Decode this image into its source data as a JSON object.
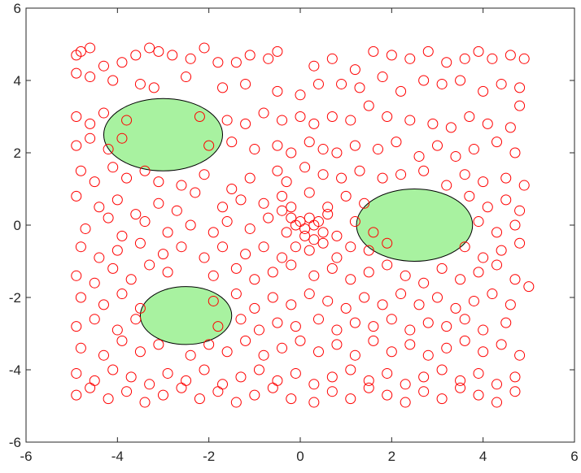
{
  "chart_data": {
    "type": "scatter",
    "title": "",
    "xlabel": "",
    "ylabel": "",
    "xlim": [
      -6,
      6
    ],
    "ylim": [
      -6,
      6
    ],
    "xticks": [
      -6,
      -4,
      -2,
      0,
      2,
      4,
      6
    ],
    "yticks": [
      -6,
      -4,
      -2,
      0,
      2,
      4,
      6
    ],
    "grid": false,
    "colors": {
      "points": "#ff0000",
      "obstacle_fill": "#a8f2a0",
      "obstacle_stroke": "#000000",
      "axes": "#262626"
    },
    "obstacles": [
      {
        "cx": -3.0,
        "cy": 2.5,
        "rx": 1.3,
        "ry": 1.0
      },
      {
        "cx": 2.5,
        "cy": 0.0,
        "rx": 1.27,
        "ry": 1.0
      },
      {
        "cx": -2.5,
        "cy": -2.5,
        "rx": 1.0,
        "ry": 0.8
      }
    ],
    "points": [
      [
        -4.8,
        4.8
      ],
      [
        -4.6,
        4.9
      ],
      [
        -4.9,
        4.7
      ],
      [
        -4.3,
        4.4
      ],
      [
        -3.9,
        4.5
      ],
      [
        -3.6,
        4.7
      ],
      [
        -3.3,
        4.9
      ],
      [
        -3.1,
        4.8
      ],
      [
        -2.8,
        4.7
      ],
      [
        -2.4,
        4.6
      ],
      [
        -2.1,
        4.9
      ],
      [
        -1.8,
        4.5
      ],
      [
        -1.4,
        4.5
      ],
      [
        -1.1,
        4.7
      ],
      [
        -0.7,
        4.6
      ],
      [
        -0.5,
        4.8
      ],
      [
        0.3,
        4.4
      ],
      [
        0.7,
        4.6
      ],
      [
        1.2,
        4.3
      ],
      [
        1.6,
        4.8
      ],
      [
        2.0,
        4.7
      ],
      [
        2.4,
        4.6
      ],
      [
        2.8,
        4.8
      ],
      [
        3.2,
        4.5
      ],
      [
        3.6,
        4.6
      ],
      [
        3.9,
        4.8
      ],
      [
        4.2,
        4.6
      ],
      [
        4.6,
        4.7
      ],
      [
        4.9,
        4.6
      ],
      [
        -4.9,
        4.2
      ],
      [
        -4.6,
        4.1
      ],
      [
        -4.1,
        4.0
      ],
      [
        -3.5,
        3.9
      ],
      [
        -3.2,
        3.8
      ],
      [
        -2.5,
        4.1
      ],
      [
        -1.7,
        3.8
      ],
      [
        -1.2,
        3.9
      ],
      [
        -0.5,
        3.7
      ],
      [
        0.0,
        3.6
      ],
      [
        0.4,
        3.9
      ],
      [
        0.9,
        3.9
      ],
      [
        1.3,
        3.8
      ],
      [
        1.8,
        4.1
      ],
      [
        2.2,
        3.7
      ],
      [
        2.7,
        4.0
      ],
      [
        3.1,
        3.9
      ],
      [
        3.5,
        4.0
      ],
      [
        4.0,
        3.7
      ],
      [
        4.4,
        3.9
      ],
      [
        4.8,
        3.8
      ],
      [
        -4.9,
        3.0
      ],
      [
        -4.6,
        2.8
      ],
      [
        -4.3,
        3.1
      ],
      [
        -3.8,
        2.9
      ],
      [
        -2.2,
        3.0
      ],
      [
        -1.6,
        2.9
      ],
      [
        -1.2,
        2.8
      ],
      [
        -0.8,
        3.1
      ],
      [
        -0.4,
        2.9
      ],
      [
        0.0,
        3.0
      ],
      [
        0.3,
        2.8
      ],
      [
        0.7,
        3.0
      ],
      [
        1.1,
        2.9
      ],
      [
        1.5,
        3.3
      ],
      [
        1.9,
        3.0
      ],
      [
        2.4,
        2.9
      ],
      [
        2.9,
        2.8
      ],
      [
        3.3,
        2.7
      ],
      [
        3.7,
        3.0
      ],
      [
        4.1,
        2.8
      ],
      [
        4.6,
        2.7
      ],
      [
        4.8,
        3.3
      ],
      [
        -4.9,
        2.2
      ],
      [
        -4.6,
        2.4
      ],
      [
        -4.2,
        2.1
      ],
      [
        -3.9,
        2.4
      ],
      [
        -2.0,
        2.2
      ],
      [
        -1.5,
        2.3
      ],
      [
        -1.0,
        2.1
      ],
      [
        -0.5,
        2.2
      ],
      [
        -0.2,
        2.0
      ],
      [
        0.2,
        2.3
      ],
      [
        0.5,
        2.1
      ],
      [
        0.8,
        2.0
      ],
      [
        1.2,
        2.2
      ],
      [
        1.7,
        2.1
      ],
      [
        2.1,
        2.3
      ],
      [
        2.6,
        1.9
      ],
      [
        3.0,
        2.2
      ],
      [
        3.4,
        1.9
      ],
      [
        3.8,
        2.1
      ],
      [
        4.3,
        2.3
      ],
      [
        4.7,
        2.0
      ],
      [
        -4.8,
        1.5
      ],
      [
        -4.5,
        1.2
      ],
      [
        -4.1,
        1.6
      ],
      [
        -3.8,
        1.3
      ],
      [
        -3.4,
        1.5
      ],
      [
        -3.1,
        1.2
      ],
      [
        -2.6,
        1.1
      ],
      [
        -2.1,
        1.4
      ],
      [
        -1.5,
        1.0
      ],
      [
        -1.1,
        1.3
      ],
      [
        -0.5,
        1.5
      ],
      [
        -0.3,
        1.2
      ],
      [
        0.1,
        1.6
      ],
      [
        0.5,
        1.4
      ],
      [
        0.9,
        1.3
      ],
      [
        1.3,
        1.5
      ],
      [
        1.8,
        1.3
      ],
      [
        2.2,
        1.4
      ],
      [
        2.7,
        1.5
      ],
      [
        3.2,
        1.1
      ],
      [
        3.6,
        1.4
      ],
      [
        4.0,
        1.2
      ],
      [
        4.5,
        1.3
      ],
      [
        4.9,
        1.1
      ],
      [
        -4.9,
        0.8
      ],
      [
        -4.4,
        0.5
      ],
      [
        -4.0,
        0.7
      ],
      [
        -3.6,
        0.3
      ],
      [
        -3.1,
        0.6
      ],
      [
        -2.7,
        0.4
      ],
      [
        -2.3,
        0.9
      ],
      [
        -1.7,
        0.5
      ],
      [
        -1.3,
        0.7
      ],
      [
        -0.8,
        0.6
      ],
      [
        -0.4,
        0.8
      ],
      [
        0.2,
        0.9
      ],
      [
        0.6,
        0.5
      ],
      [
        1.0,
        0.8
      ],
      [
        1.4,
        0.6
      ],
      [
        3.7,
        0.8
      ],
      [
        4.1,
        0.5
      ],
      [
        4.5,
        0.7
      ],
      [
        4.8,
        0.4
      ],
      [
        -4.7,
        -0.1
      ],
      [
        -4.2,
        0.2
      ],
      [
        -3.9,
        -0.3
      ],
      [
        -3.4,
        0.1
      ],
      [
        -2.9,
        -0.2
      ],
      [
        -2.4,
        0.0
      ],
      [
        -1.9,
        -0.2
      ],
      [
        -1.6,
        0.1
      ],
      [
        -1.1,
        -0.1
      ],
      [
        -0.7,
        0.2
      ],
      [
        -0.4,
        0.4
      ],
      [
        -0.2,
        0.2
      ],
      [
        -0.1,
        0.0
      ],
      [
        0.0,
        0.1
      ],
      [
        0.1,
        -0.1
      ],
      [
        0.2,
        0.2
      ],
      [
        0.3,
        0.0
      ],
      [
        0.4,
        0.1
      ],
      [
        -0.3,
        -0.2
      ],
      [
        0.1,
        -0.3
      ],
      [
        0.3,
        -0.4
      ],
      [
        -0.2,
        0.5
      ],
      [
        0.5,
        -0.2
      ],
      [
        0.6,
        0.3
      ],
      [
        0.8,
        -0.3
      ],
      [
        1.2,
        0.1
      ],
      [
        1.6,
        -0.2
      ],
      [
        3.9,
        0.1
      ],
      [
        4.3,
        -0.2
      ],
      [
        4.7,
        0.0
      ],
      [
        -4.8,
        -0.6
      ],
      [
        -4.4,
        -0.9
      ],
      [
        -4.0,
        -0.7
      ],
      [
        -3.5,
        -0.5
      ],
      [
        -3.0,
        -0.8
      ],
      [
        -2.6,
        -0.6
      ],
      [
        -2.1,
        -0.9
      ],
      [
        -1.7,
        -0.6
      ],
      [
        -1.2,
        -0.8
      ],
      [
        -0.8,
        -0.6
      ],
      [
        -0.4,
        -0.9
      ],
      [
        -0.1,
        -0.6
      ],
      [
        0.2,
        -0.7
      ],
      [
        0.5,
        -0.5
      ],
      [
        0.8,
        -0.9
      ],
      [
        1.1,
        -0.6
      ],
      [
        1.5,
        -0.7
      ],
      [
        1.9,
        -0.5
      ],
      [
        3.6,
        -0.6
      ],
      [
        4.0,
        -0.9
      ],
      [
        4.4,
        -0.7
      ],
      [
        4.8,
        -0.5
      ],
      [
        -4.9,
        -1.4
      ],
      [
        -4.5,
        -1.6
      ],
      [
        -4.1,
        -1.2
      ],
      [
        -3.7,
        -1.5
      ],
      [
        -3.3,
        -1.1
      ],
      [
        -2.9,
        -1.3
      ],
      [
        -1.9,
        -1.4
      ],
      [
        -1.4,
        -1.2
      ],
      [
        -1.0,
        -1.5
      ],
      [
        -0.6,
        -1.3
      ],
      [
        -0.2,
        -1.1
      ],
      [
        0.3,
        -1.4
      ],
      [
        0.7,
        -1.2
      ],
      [
        1.1,
        -1.5
      ],
      [
        1.5,
        -1.3
      ],
      [
        1.9,
        -1.1
      ],
      [
        2.3,
        -1.4
      ],
      [
        2.7,
        -1.6
      ],
      [
        3.1,
        -1.2
      ],
      [
        3.5,
        -1.5
      ],
      [
        3.9,
        -1.3
      ],
      [
        4.3,
        -1.1
      ],
      [
        4.7,
        -1.5
      ],
      [
        5.0,
        -1.7
      ],
      [
        -4.8,
        -2.0
      ],
      [
        -4.3,
        -2.2
      ],
      [
        -3.9,
        -1.9
      ],
      [
        -3.5,
        -2.3
      ],
      [
        -1.9,
        -2.1
      ],
      [
        -1.4,
        -1.9
      ],
      [
        -1.0,
        -2.3
      ],
      [
        -0.6,
        -2.0
      ],
      [
        -0.2,
        -2.2
      ],
      [
        0.2,
        -1.9
      ],
      [
        0.6,
        -2.1
      ],
      [
        1.0,
        -2.3
      ],
      [
        1.4,
        -2.0
      ],
      [
        1.8,
        -2.2
      ],
      [
        2.2,
        -1.9
      ],
      [
        2.6,
        -2.2
      ],
      [
        3.0,
        -2.0
      ],
      [
        3.4,
        -2.3
      ],
      [
        3.8,
        -2.1
      ],
      [
        4.2,
        -1.9
      ],
      [
        4.6,
        -2.2
      ],
      [
        -4.9,
        -2.8
      ],
      [
        -4.5,
        -2.6
      ],
      [
        -4.0,
        -2.9
      ],
      [
        -3.6,
        -2.6
      ],
      [
        -1.8,
        -2.8
      ],
      [
        -1.3,
        -2.6
      ],
      [
        -0.9,
        -2.9
      ],
      [
        -0.5,
        -2.7
      ],
      [
        -0.1,
        -2.8
      ],
      [
        0.4,
        -2.6
      ],
      [
        0.8,
        -2.9
      ],
      [
        1.2,
        -2.7
      ],
      [
        1.6,
        -2.8
      ],
      [
        2.0,
        -2.6
      ],
      [
        2.4,
        -2.9
      ],
      [
        2.8,
        -2.7
      ],
      [
        3.2,
        -2.8
      ],
      [
        3.6,
        -2.6
      ],
      [
        4.0,
        -2.9
      ],
      [
        4.5,
        -2.7
      ],
      [
        -4.8,
        -3.4
      ],
      [
        -4.3,
        -3.6
      ],
      [
        -3.9,
        -3.2
      ],
      [
        -3.5,
        -3.5
      ],
      [
        -3.1,
        -3.3
      ],
      [
        -2.4,
        -3.6
      ],
      [
        -2.0,
        -3.3
      ],
      [
        -1.6,
        -3.5
      ],
      [
        -1.2,
        -3.2
      ],
      [
        -0.8,
        -3.6
      ],
      [
        -0.4,
        -3.4
      ],
      [
        0.0,
        -3.2
      ],
      [
        0.4,
        -3.5
      ],
      [
        0.8,
        -3.3
      ],
      [
        1.2,
        -3.6
      ],
      [
        1.6,
        -3.2
      ],
      [
        2.0,
        -3.5
      ],
      [
        2.4,
        -3.3
      ],
      [
        2.8,
        -3.6
      ],
      [
        3.2,
        -3.4
      ],
      [
        3.6,
        -3.2
      ],
      [
        4.0,
        -3.5
      ],
      [
        4.4,
        -3.3
      ],
      [
        4.8,
        -3.6
      ],
      [
        -4.9,
        -4.1
      ],
      [
        -4.5,
        -4.3
      ],
      [
        -4.1,
        -4.0
      ],
      [
        -3.7,
        -4.2
      ],
      [
        -3.3,
        -4.4
      ],
      [
        -2.9,
        -4.1
      ],
      [
        -2.5,
        -4.3
      ],
      [
        -2.1,
        -4.0
      ],
      [
        -1.7,
        -4.4
      ],
      [
        -1.3,
        -4.2
      ],
      [
        -0.9,
        -4.0
      ],
      [
        -0.5,
        -4.3
      ],
      [
        -0.1,
        -4.1
      ],
      [
        0.3,
        -4.4
      ],
      [
        0.7,
        -4.2
      ],
      [
        1.1,
        -4.0
      ],
      [
        1.5,
        -4.3
      ],
      [
        1.9,
        -4.1
      ],
      [
        2.3,
        -4.4
      ],
      [
        2.7,
        -4.2
      ],
      [
        3.1,
        -4.0
      ],
      [
        3.5,
        -4.3
      ],
      [
        3.9,
        -4.1
      ],
      [
        4.3,
        -4.4
      ],
      [
        4.7,
        -4.2
      ],
      [
        -4.9,
        -4.7
      ],
      [
        -4.6,
        -4.5
      ],
      [
        -4.2,
        -4.8
      ],
      [
        -3.8,
        -4.6
      ],
      [
        -3.4,
        -4.9
      ],
      [
        -3.0,
        -4.7
      ],
      [
        -2.6,
        -4.5
      ],
      [
        -2.2,
        -4.8
      ],
      [
        -1.8,
        -4.6
      ],
      [
        -1.4,
        -4.9
      ],
      [
        -1.0,
        -4.7
      ],
      [
        -0.6,
        -4.5
      ],
      [
        -0.2,
        -4.8
      ],
      [
        0.3,
        -4.9
      ],
      [
        0.7,
        -4.6
      ],
      [
        1.1,
        -4.8
      ],
      [
        1.5,
        -4.5
      ],
      [
        1.9,
        -4.7
      ],
      [
        2.3,
        -4.9
      ],
      [
        2.7,
        -4.6
      ],
      [
        3.1,
        -4.8
      ],
      [
        3.5,
        -4.5
      ],
      [
        3.9,
        -4.7
      ],
      [
        4.3,
        -4.9
      ],
      [
        4.7,
        -4.6
      ]
    ]
  }
}
